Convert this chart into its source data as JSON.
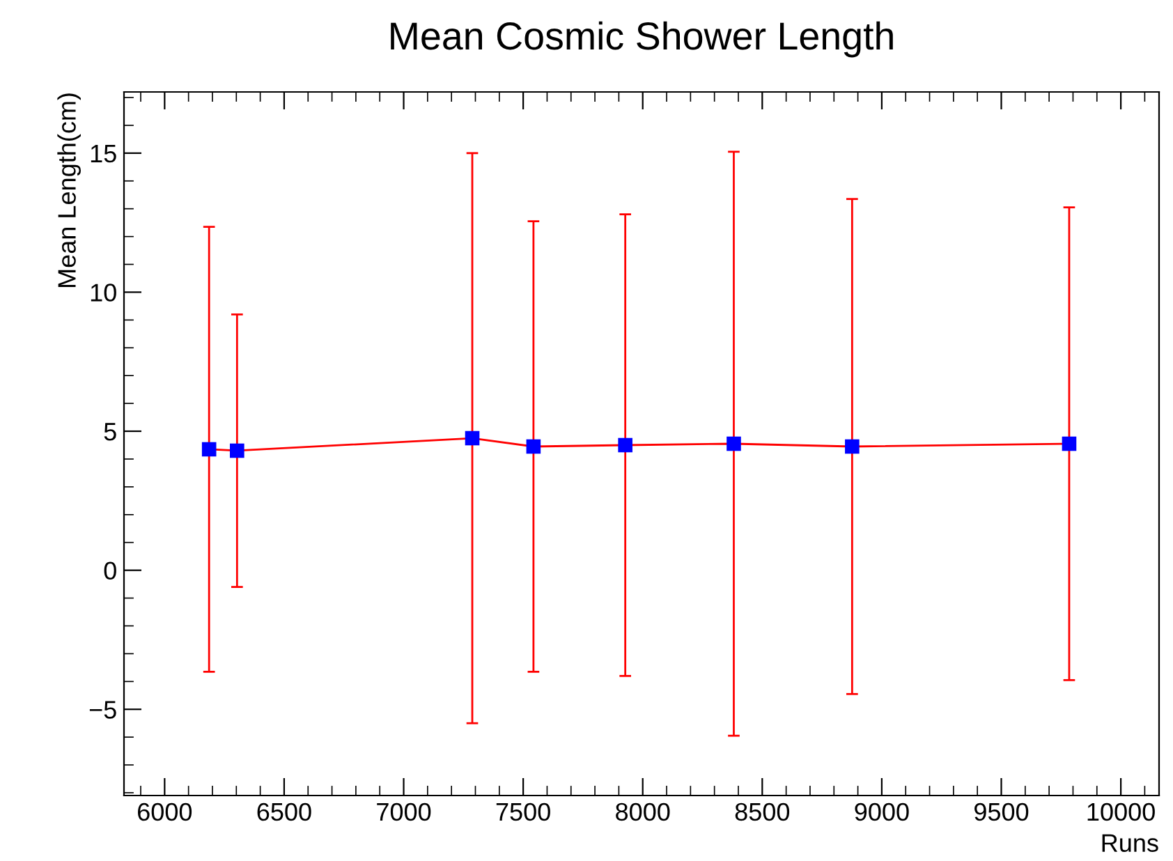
{
  "chart_data": {
    "type": "line",
    "title": "Mean Cosmic Shower Length",
    "xlabel": "Runs",
    "ylabel": "Mean Length(cm)",
    "x": [
      6186,
      6303,
      7287,
      7543,
      7927,
      8381,
      8876,
      9784
    ],
    "series": [
      {
        "color": "#ff0000",
        "colors": [
          "#0000ff",
          "#0000ff",
          "#0000ff",
          "#0000ff",
          "#0000ff",
          "#0000ff",
          "#0000ff",
          "#0000ff"
        ],
        "values": [
          4.35,
          4.3,
          4.75,
          4.45,
          4.5,
          4.55,
          4.45,
          4.55
        ],
        "errors": [
          8.0,
          4.9,
          10.25,
          8.1,
          8.3,
          10.5,
          8.9,
          8.5
        ]
      }
    ],
    "xlim": [
      5830,
      10160
    ],
    "xticks": [
      6000,
      6500,
      7000,
      7500,
      8000,
      8500,
      9000,
      9500,
      10000
    ],
    "ylim": [
      -8.1,
      17.2
    ],
    "yticks": [
      {
        "value": -5,
        "label": "−5"
      },
      0,
      5,
      10,
      15
    ],
    "marker": "square",
    "line_style": "solid",
    "grid": false,
    "legend": false
  }
}
